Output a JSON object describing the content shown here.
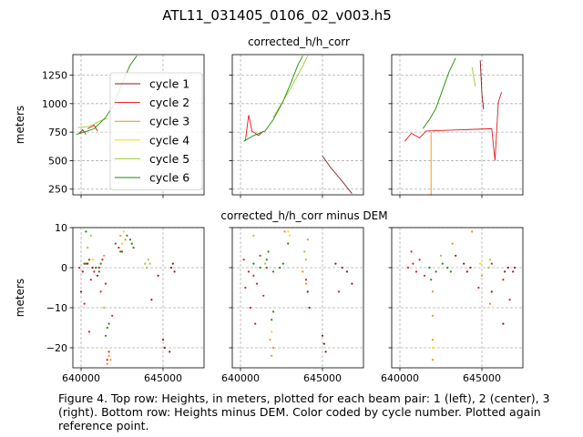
{
  "figure": {
    "title": "ATL11_031405_0106_02_v003.h5",
    "top_row_title": "corrected_h/h_corr",
    "bottom_row_title": "corrected_h/h_corr minus DEM",
    "caption": "Figure 4. Top row: Heights, in meters, plotted for each beam pair: 1 (left), 2 (center), 3 (right). Bottom row: Heights minus DEM. Color coded by cycle number. Plotted again reference point."
  },
  "chart_data": [
    {
      "type": "line",
      "panel": "top-left",
      "ylabel": "meters",
      "xlim": [
        639500,
        647500
      ],
      "ylim": [
        200,
        1430
      ],
      "yticks": [
        250,
        500,
        750,
        1000,
        1250
      ],
      "xticks": [
        640000,
        645000
      ],
      "grid": true,
      "legend": {
        "placement": "top-right",
        "entries": [
          "cycle 1",
          "cycle 2",
          "cycle 3",
          "cycle 4",
          "cycle 5",
          "cycle 6"
        ]
      },
      "series": [
        {
          "name": "cycle 1",
          "color": "#8b1a1a",
          "points": [
            [
              639900,
              740
            ],
            [
              640100,
              770
            ],
            [
              640300,
              730
            ]
          ]
        },
        {
          "name": "cycle 2",
          "color": "#e31a1c",
          "points": [
            [
              640400,
              780
            ],
            [
              640800,
              810
            ],
            [
              641000,
              760
            ]
          ]
        },
        {
          "name": "cycle 5",
          "color": "#9acd32",
          "points": [
            [
              639800,
              790
            ],
            [
              640500,
              800
            ],
            [
              641200,
              850
            ],
            [
              641600,
              870
            ]
          ]
        },
        {
          "name": "cycle 6",
          "color": "#1f8a00",
          "points": [
            [
              639700,
              730
            ],
            [
              640200,
              750
            ],
            [
              640800,
              780
            ],
            [
              641500,
              880
            ],
            [
              642000,
              990
            ],
            [
              642500,
              1180
            ],
            [
              643000,
              1340
            ],
            [
              643400,
              1420
            ]
          ]
        }
      ]
    },
    {
      "type": "line",
      "panel": "top-center",
      "xlim": [
        639500,
        647500
      ],
      "ylim": [
        200,
        1430
      ],
      "series": [
        {
          "name": "cycle 1",
          "color": "#8b1a1a",
          "points": [
            [
              645000,
              540
            ],
            [
              645500,
              440
            ],
            [
              646200,
              320
            ],
            [
              646800,
              210
            ]
          ]
        },
        {
          "name": "cycle 2",
          "color": "#e31a1c",
          "points": [
            [
              640300,
              680
            ],
            [
              640500,
              900
            ],
            [
              640700,
              760
            ],
            [
              641100,
              720
            ],
            [
              641400,
              760
            ]
          ]
        },
        {
          "name": "cycle 5",
          "color": "#9acd32",
          "points": [
            [
              642000,
              880
            ],
            [
              643000,
              1120
            ],
            [
              643800,
              1330
            ],
            [
              644100,
              1420
            ]
          ]
        },
        {
          "name": "cycle 6",
          "color": "#1f8a00",
          "points": [
            [
              640200,
              670
            ],
            [
              640800,
              720
            ],
            [
              641500,
              760
            ],
            [
              642000,
              860
            ],
            [
              642600,
              1020
            ],
            [
              643100,
              1190
            ],
            [
              643500,
              1340
            ],
            [
              643800,
              1420
            ]
          ]
        }
      ]
    },
    {
      "type": "line",
      "panel": "top-right",
      "xlim": [
        639500,
        647500
      ],
      "ylim": [
        200,
        1430
      ],
      "series": [
        {
          "name": "cycle 1",
          "color": "#8b1a1a",
          "points": [
            [
              644900,
              1380
            ],
            [
              645000,
              1090
            ],
            [
              645100,
              950
            ]
          ]
        },
        {
          "name": "cycle 2",
          "color": "#e31a1c",
          "points": [
            [
              640300,
              670
            ],
            [
              640700,
              740
            ],
            [
              641200,
              700
            ],
            [
              641600,
              760
            ],
            [
              645600,
              780
            ],
            [
              645800,
              500
            ],
            [
              646000,
              1010
            ],
            [
              646200,
              1100
            ]
          ]
        },
        {
          "name": "cycle 3",
          "color": "#ff8c00",
          "points": [
            [
              641900,
              750
            ],
            [
              641900,
              200
            ]
          ]
        },
        {
          "name": "cycle 5",
          "color": "#9acd32",
          "points": [
            [
              644400,
              1320
            ],
            [
              644600,
              1150
            ]
          ]
        },
        {
          "name": "cycle 6",
          "color": "#1f8a00",
          "points": [
            [
              641400,
              780
            ],
            [
              641800,
              860
            ],
            [
              642200,
              960
            ],
            [
              642600,
              1120
            ],
            [
              643000,
              1280
            ],
            [
              643400,
              1400
            ]
          ]
        }
      ]
    },
    {
      "type": "scatter",
      "panel": "bottom-left",
      "ylabel": "meters",
      "xlim": [
        639500,
        647500
      ],
      "ylim": [
        -25,
        10
      ],
      "yticks": [
        -20,
        -10,
        0,
        10
      ],
      "xticks": [
        640000,
        645000
      ],
      "grid": true,
      "series": [
        {
          "name": "cycle 1",
          "color": "#8b1a1a",
          "points": [
            [
              640100,
              -1
            ],
            [
              640400,
              1
            ],
            [
              640700,
              0
            ],
            [
              641000,
              -2
            ],
            [
              645000,
              -18
            ],
            [
              645100,
              -20
            ],
            [
              645400,
              -21
            ],
            [
              645500,
              0
            ],
            [
              645600,
              1
            ],
            [
              645700,
              -1
            ],
            [
              644300,
              -8
            ],
            [
              644700,
              -2
            ],
            [
              640000,
              -6
            ]
          ]
        },
        {
          "name": "cycle 2",
          "color": "#e31a1c",
          "points": [
            [
              639900,
              0
            ],
            [
              640300,
              1
            ],
            [
              640600,
              -3
            ],
            [
              640800,
              -1
            ],
            [
              641100,
              0
            ],
            [
              641300,
              2
            ],
            [
              641500,
              -4
            ],
            [
              641600,
              -23
            ],
            [
              641700,
              -21
            ],
            [
              641900,
              -12
            ],
            [
              642300,
              5
            ],
            [
              642500,
              4
            ],
            [
              640200,
              -9
            ],
            [
              640500,
              -16
            ],
            [
              641200,
              -6
            ]
          ]
        },
        {
          "name": "cycle 3",
          "color": "#ff8c00",
          "points": [
            [
              641600,
              -24
            ],
            [
              641700,
              -22
            ],
            [
              641800,
              -23
            ],
            [
              642400,
              8
            ],
            [
              642700,
              7
            ],
            [
              641400,
              3
            ]
          ]
        },
        {
          "name": "cycle 4",
          "color": "#ffd700",
          "points": [
            [
              642500,
              6
            ],
            [
              642600,
              9
            ],
            [
              640700,
              2
            ]
          ]
        },
        {
          "name": "cycle 5",
          "color": "#9acd32",
          "points": [
            [
              643900,
              1
            ],
            [
              644000,
              0
            ],
            [
              644100,
              2
            ],
            [
              644200,
              1
            ],
            [
              640400,
              5
            ],
            [
              641400,
              -10
            ],
            [
              640600,
              8
            ]
          ]
        },
        {
          "name": "cycle 6",
          "color": "#1f8a00",
          "points": [
            [
              640200,
              1
            ],
            [
              640500,
              2
            ],
            [
              640900,
              0
            ],
            [
              641100,
              -1
            ],
            [
              641200,
              1
            ],
            [
              641500,
              -17
            ],
            [
              641600,
              -15
            ],
            [
              641700,
              -14
            ],
            [
              642100,
              6
            ],
            [
              642400,
              4
            ],
            [
              642800,
              8
            ],
            [
              643000,
              7
            ],
            [
              643100,
              6
            ],
            [
              643200,
              5
            ],
            [
              640300,
              9
            ]
          ]
        }
      ]
    },
    {
      "type": "scatter",
      "panel": "bottom-center",
      "xlim": [
        639500,
        647500
      ],
      "ylim": [
        -25,
        10
      ],
      "series": [
        {
          "name": "cycle 1",
          "color": "#8b1a1a",
          "points": [
            [
              645000,
              -17
            ],
            [
              645100,
              -19
            ],
            [
              645200,
              -21
            ],
            [
              645800,
              1
            ],
            [
              646200,
              0
            ],
            [
              646500,
              -1
            ],
            [
              644100,
              -6
            ],
            [
              644200,
              -10
            ],
            [
              646800,
              -4
            ]
          ]
        },
        {
          "name": "cycle 2",
          "color": "#e31a1c",
          "points": [
            [
              640200,
              2
            ],
            [
              640500,
              -1
            ],
            [
              640800,
              -2
            ],
            [
              641000,
              -4
            ],
            [
              641200,
              3
            ],
            [
              641400,
              -7
            ],
            [
              641600,
              0
            ],
            [
              640600,
              -10
            ],
            [
              640900,
              -14
            ],
            [
              640300,
              -5
            ],
            [
              644000,
              -3
            ],
            [
              646000,
              -6
            ]
          ]
        },
        {
          "name": "cycle 3",
          "color": "#ff8c00",
          "points": [
            [
              641800,
              -18
            ],
            [
              641900,
              -22
            ],
            [
              642000,
              -20
            ],
            [
              643800,
              -1
            ],
            [
              644000,
              -4
            ],
            [
              644100,
              7
            ],
            [
              642700,
              9
            ]
          ]
        },
        {
          "name": "cycle 4",
          "color": "#ffd700",
          "points": [
            [
              642900,
              9
            ],
            [
              643000,
              8
            ],
            [
              641900,
              -16
            ]
          ]
        },
        {
          "name": "cycle 5",
          "color": "#9acd32",
          "points": [
            [
              643900,
              4
            ],
            [
              644000,
              2
            ],
            [
              640800,
              8
            ],
            [
              641500,
              1
            ]
          ]
        },
        {
          "name": "cycle 6",
          "color": "#1f8a00",
          "points": [
            [
              640800,
              1
            ],
            [
              641200,
              0
            ],
            [
              641600,
              2
            ],
            [
              642000,
              -1
            ],
            [
              642400,
              0
            ],
            [
              642600,
              1
            ],
            [
              641900,
              -13
            ],
            [
              642000,
              -11
            ],
            [
              642900,
              6
            ],
            [
              641700,
              4
            ]
          ]
        }
      ]
    },
    {
      "type": "scatter",
      "panel": "bottom-right",
      "xlim": [
        639500,
        647500
      ],
      "ylim": [
        -25,
        10
      ],
      "series": [
        {
          "name": "cycle 1",
          "color": "#8b1a1a",
          "points": [
            [
              643900,
              1
            ],
            [
              644100,
              -1
            ],
            [
              644300,
              0
            ],
            [
              646400,
              -1
            ],
            [
              646600,
              0
            ],
            [
              646900,
              -1
            ],
            [
              647000,
              0
            ],
            [
              645600,
              -6
            ],
            [
              646300,
              -14
            ],
            [
              643400,
              3
            ]
          ]
        },
        {
          "name": "cycle 2",
          "color": "#e31a1c",
          "points": [
            [
              640500,
              0
            ],
            [
              640800,
              1
            ],
            [
              641000,
              -1
            ],
            [
              641200,
              2
            ],
            [
              641500,
              -2
            ],
            [
              640700,
              4
            ],
            [
              644800,
              -5
            ],
            [
              645600,
              1
            ],
            [
              646300,
              -3
            ],
            [
              646700,
              -8
            ]
          ]
        },
        {
          "name": "cycle 3",
          "color": "#ff8c00",
          "points": [
            [
              642000,
              -6
            ],
            [
              642000,
              -12
            ],
            [
              642000,
              -18
            ],
            [
              642000,
              -23
            ],
            [
              645000,
              -2
            ],
            [
              645500,
              -9
            ],
            [
              644400,
              9
            ],
            [
              643200,
              6
            ]
          ]
        },
        {
          "name": "cycle 4",
          "color": "#ffd700",
          "points": [
            [
              642000,
              -20
            ],
            [
              644900,
              1
            ]
          ]
        },
        {
          "name": "cycle 5",
          "color": "#9acd32",
          "points": [
            [
              645400,
              0
            ],
            [
              645500,
              2
            ],
            [
              642500,
              3
            ]
          ]
        },
        {
          "name": "cycle 6",
          "color": "#1f8a00",
          "points": [
            [
              641800,
              0
            ],
            [
              642200,
              -1
            ],
            [
              642600,
              1
            ],
            [
              642900,
              0
            ],
            [
              643100,
              -1
            ],
            [
              641900,
              -3
            ]
          ]
        }
      ]
    }
  ]
}
